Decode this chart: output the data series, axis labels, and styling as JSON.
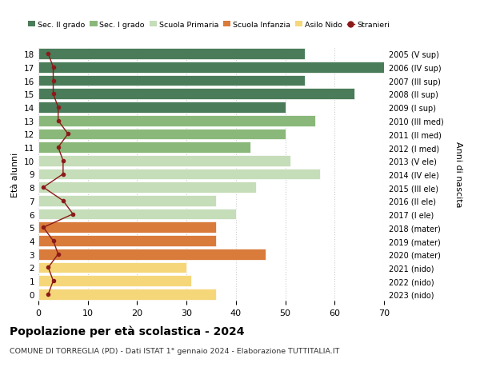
{
  "ages": [
    18,
    17,
    16,
    15,
    14,
    13,
    12,
    11,
    10,
    9,
    8,
    7,
    6,
    5,
    4,
    3,
    2,
    1,
    0
  ],
  "bar_values": [
    54,
    70,
    54,
    64,
    50,
    56,
    50,
    43,
    51,
    57,
    44,
    36,
    40,
    36,
    36,
    46,
    30,
    31,
    36
  ],
  "bar_colors": [
    "#4a7c59",
    "#4a7c59",
    "#4a7c59",
    "#4a7c59",
    "#4a7c59",
    "#8ab87a",
    "#8ab87a",
    "#8ab87a",
    "#c5ddb8",
    "#c5ddb8",
    "#c5ddb8",
    "#c5ddb8",
    "#c5ddb8",
    "#d97b3a",
    "#d97b3a",
    "#d97b3a",
    "#f5d77a",
    "#f5d77a",
    "#f5d77a"
  ],
  "stranieri_values": [
    2,
    3,
    3,
    3,
    4,
    4,
    6,
    4,
    5,
    5,
    1,
    5,
    7,
    1,
    3,
    4,
    2,
    3,
    2
  ],
  "right_labels": [
    "2005 (V sup)",
    "2006 (IV sup)",
    "2007 (III sup)",
    "2008 (II sup)",
    "2009 (I sup)",
    "2010 (III med)",
    "2011 (II med)",
    "2012 (I med)",
    "2013 (V ele)",
    "2014 (IV ele)",
    "2015 (III ele)",
    "2016 (II ele)",
    "2017 (I ele)",
    "2018 (mater)",
    "2019 (mater)",
    "2020 (mater)",
    "2021 (nido)",
    "2022 (nido)",
    "2023 (nido)"
  ],
  "legend_labels": [
    "Sec. II grado",
    "Sec. I grado",
    "Scuola Primaria",
    "Scuola Infanzia",
    "Asilo Nido",
    "Stranieri"
  ],
  "legend_colors": [
    "#4a7c59",
    "#8ab87a",
    "#c5ddb8",
    "#d97b3a",
    "#f5d77a",
    "#8b1a1a"
  ],
  "ylabel": "Età alunni",
  "right_ylabel": "Anni di nascita",
  "title": "Popolazione per età scolastica - 2024",
  "subtitle": "COMUNE DI TORREGLIA (PD) - Dati ISTAT 1° gennaio 2024 - Elaborazione TUTTITALIA.IT",
  "xlim": [
    0,
    70
  ],
  "stranieri_color": "#8b1a1a",
  "background_color": "#ffffff",
  "grid_color": "#cccccc"
}
